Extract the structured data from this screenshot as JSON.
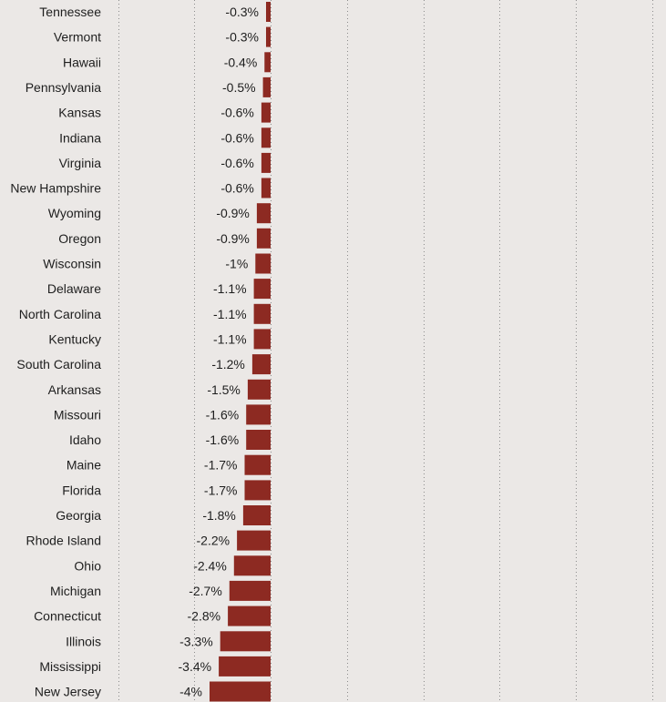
{
  "chart_data": {
    "type": "bar",
    "orientation": "horizontal",
    "bar_color": "#8d2a22",
    "background_color": "#ebe8e6",
    "grid": true,
    "grid_style": "dotted vertical",
    "categories": [
      "Tennessee",
      "Vermont",
      "Hawaii",
      "Pennsylvania",
      "Kansas",
      "Indiana",
      "Virginia",
      "New Hampshire",
      "Wyoming",
      "Oregon",
      "Wisconsin",
      "Delaware",
      "North Carolina",
      "Kentucky",
      "South Carolina",
      "Arkansas",
      "Missouri",
      "Idaho",
      "Maine",
      "Florida",
      "Georgia",
      "Rhode Island",
      "Ohio",
      "Michigan",
      "Connecticut",
      "Illinois",
      "Mississippi",
      "New Jersey"
    ],
    "values": [
      -0.3,
      -0.3,
      -0.4,
      -0.5,
      -0.6,
      -0.6,
      -0.6,
      -0.6,
      -0.9,
      -0.9,
      -1,
      -1.1,
      -1.1,
      -1.1,
      -1.2,
      -1.5,
      -1.6,
      -1.6,
      -1.7,
      -1.7,
      -1.8,
      -2.2,
      -2.4,
      -2.7,
      -2.8,
      -3.3,
      -3.4,
      -4
    ],
    "value_labels": [
      "-0.3%",
      "-0.3%",
      "-0.4%",
      "-0.5%",
      "-0.6%",
      "-0.6%",
      "-0.6%",
      "-0.6%",
      "-0.9%",
      "-0.9%",
      "-1%",
      "-1.1%",
      "-1.1%",
      "-1.1%",
      "-1.2%",
      "-1.5%",
      "-1.6%",
      "-1.6%",
      "-1.7%",
      "-1.7%",
      "-1.8%",
      "-2.2%",
      "-2.4%",
      "-2.7%",
      "-2.8%",
      "-3.3%",
      "-3.4%",
      "-4%"
    ],
    "xlim": [
      -10,
      25
    ],
    "grid_values": [
      -10,
      -5,
      0,
      5,
      10,
      15,
      20,
      25
    ]
  }
}
